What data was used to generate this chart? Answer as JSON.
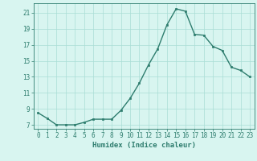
{
  "x": [
    0,
    1,
    2,
    3,
    4,
    5,
    6,
    7,
    8,
    9,
    10,
    11,
    12,
    13,
    14,
    15,
    16,
    17,
    18,
    19,
    20,
    21,
    22,
    23
  ],
  "y": [
    8.5,
    7.8,
    7.0,
    7.0,
    7.0,
    7.3,
    7.7,
    7.7,
    7.7,
    8.8,
    10.3,
    12.2,
    14.5,
    16.5,
    19.5,
    21.5,
    21.2,
    18.3,
    18.2,
    16.8,
    16.3,
    14.2,
    13.8,
    13.0
  ],
  "xlim": [
    -0.5,
    23.5
  ],
  "ylim": [
    6.5,
    22.2
  ],
  "yticks": [
    7,
    9,
    11,
    13,
    15,
    17,
    19,
    21
  ],
  "xticks": [
    0,
    1,
    2,
    3,
    4,
    5,
    6,
    7,
    8,
    9,
    10,
    11,
    12,
    13,
    14,
    15,
    16,
    17,
    18,
    19,
    20,
    21,
    22,
    23
  ],
  "xlabel": "Humidex (Indice chaleur)",
  "line_color": "#2e7d6e",
  "marker": "s",
  "marker_size": 1.8,
  "bg_color": "#d8f5f0",
  "grid_color": "#aaddd5",
  "tick_fontsize": 5.5,
  "label_fontsize": 6.5,
  "line_width": 1.0
}
